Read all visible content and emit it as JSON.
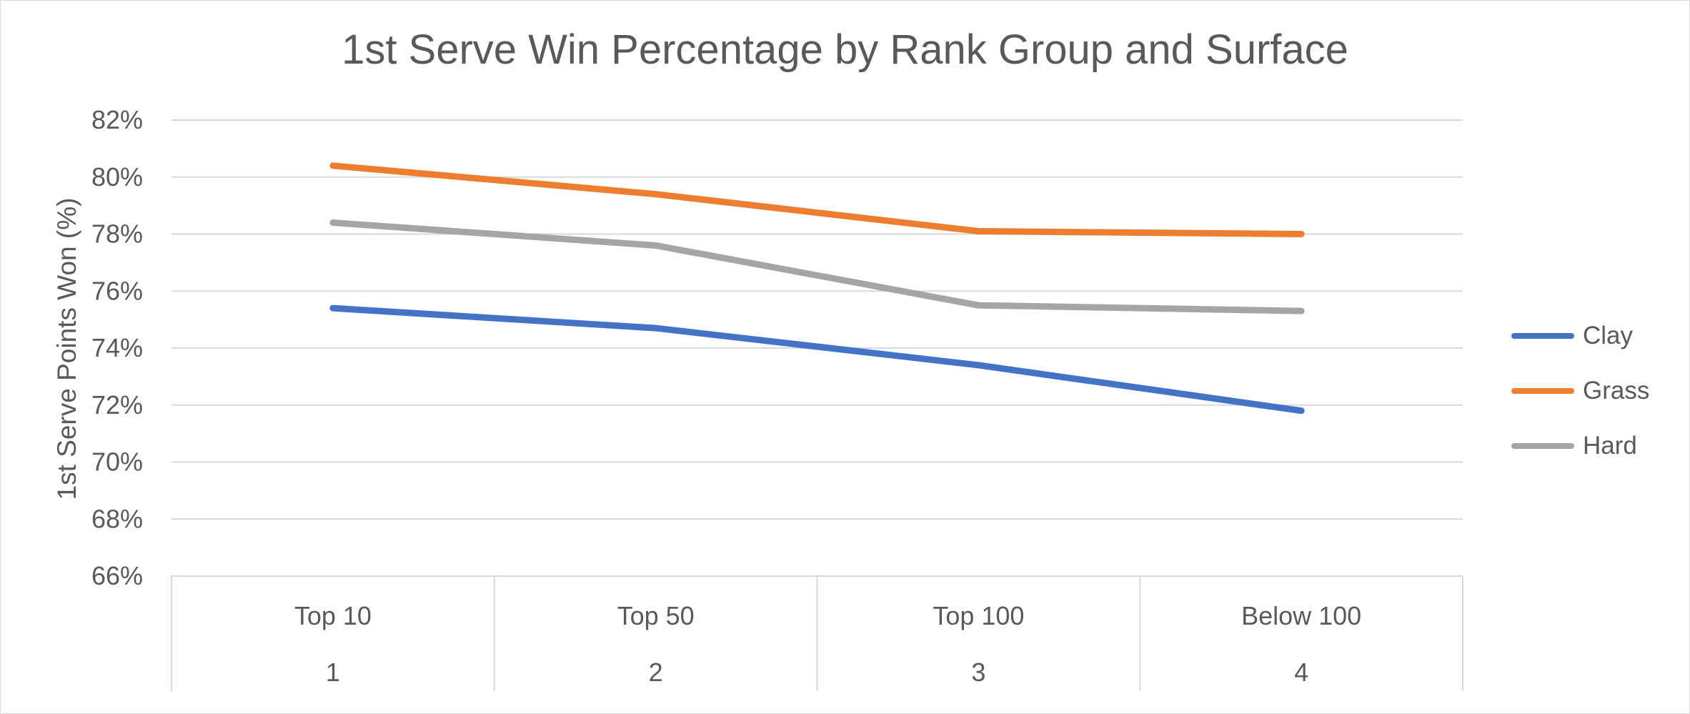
{
  "chart_data": {
    "type": "line",
    "title": "1st Serve Win Percentage by Rank Group and Surface",
    "xlabel": "",
    "ylabel": "1st Serve Points Won (%)",
    "ylim": [
      66,
      82
    ],
    "y_ticks": [
      "66%",
      "68%",
      "70%",
      "72%",
      "74%",
      "76%",
      "78%",
      "80%",
      "82%"
    ],
    "categories": [
      "Top 10",
      "Top 50",
      "Top 100",
      "Below 100"
    ],
    "category_numbers": [
      "1",
      "2",
      "3",
      "4"
    ],
    "grid": true,
    "legend_position": "right",
    "series": [
      {
        "name": "Clay",
        "color": "#4472c4",
        "values": [
          75.4,
          74.7,
          73.4,
          71.8
        ]
      },
      {
        "name": "Grass",
        "color": "#ed7d31",
        "values": [
          80.4,
          79.4,
          78.1,
          78.0
        ]
      },
      {
        "name": "Hard",
        "color": "#a5a5a5",
        "values": [
          78.4,
          77.6,
          75.5,
          75.3
        ]
      }
    ]
  }
}
